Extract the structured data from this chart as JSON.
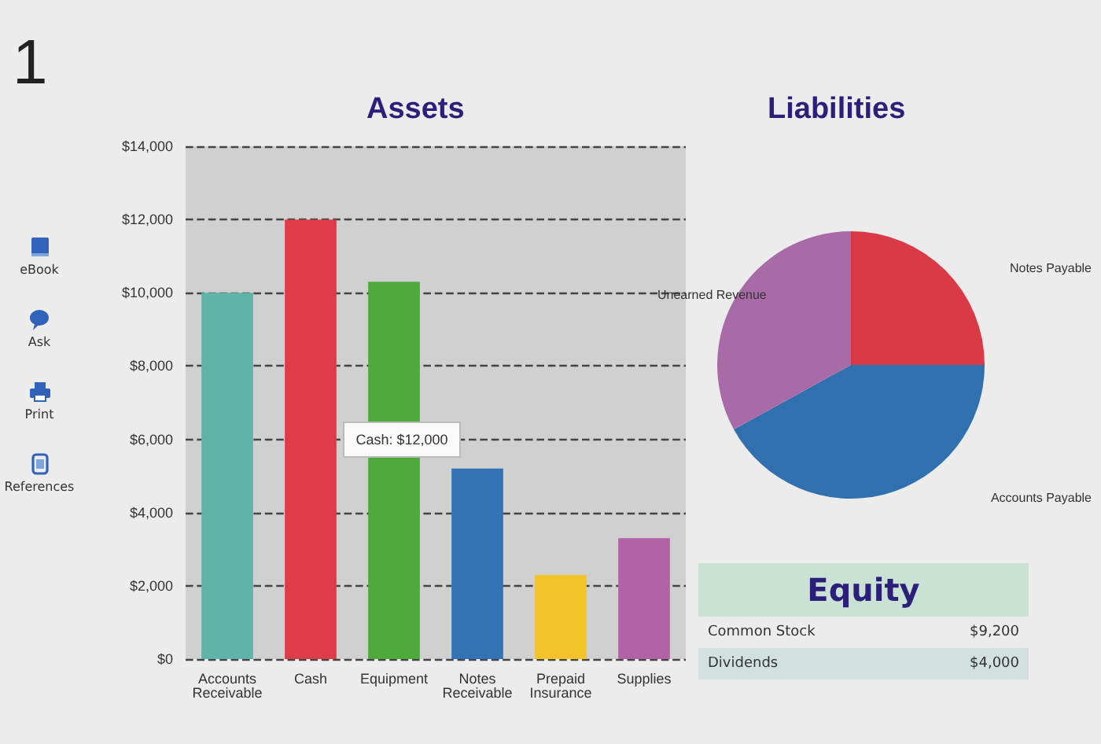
{
  "chart_data": [
    {
      "type": "bar",
      "title": "Assets",
      "categories": [
        "Accounts\nReceivable",
        "Cash",
        "Equipment",
        "Notes\nReceivable",
        "Prepaid\nInsurance",
        "Supplies"
      ],
      "values": [
        10000,
        12000,
        10300,
        5200,
        2300,
        3300
      ],
      "colors": [
        "#5fb3a8",
        "#e03b48",
        "#4fa83a",
        "#3373b5",
        "#f2c42a",
        "#b263a8"
      ],
      "ylim": [
        0,
        14000
      ],
      "yticks": [
        {
          "value": 0,
          "label": "$0"
        },
        {
          "value": 2000,
          "label": "$2,000"
        },
        {
          "value": 4000,
          "label": "$4,000"
        },
        {
          "value": 6000,
          "label": "$6,000"
        },
        {
          "value": 8000,
          "label": "$8,000"
        },
        {
          "value": 10000,
          "label": "$10,000"
        },
        {
          "value": 12000,
          "label": "$12,000"
        },
        {
          "value": 14000,
          "label": "$14,000"
        }
      ],
      "grid": "y",
      "legend": false,
      "annotations": [
        "Cash: $12,000"
      ]
    },
    {
      "type": "pie",
      "title": "Liabilities",
      "categories": [
        "Notes Payable",
        "Accounts Payable",
        "Unearned Revenue"
      ],
      "values": [
        25,
        42,
        33
      ],
      "colors": [
        "#d93a46",
        "#3170ae",
        "#a96ba8"
      ],
      "legend": false
    },
    {
      "type": "other",
      "title": "Equity",
      "categories": [
        "Common Stock",
        "Dividends"
      ],
      "value_labels": [
        "$9,200",
        "$4,000"
      ]
    },
    {
      "type": "other",
      "annotations": [
        "1",
        "eBook",
        "Ask",
        "Print",
        "References"
      ]
    }
  ]
}
